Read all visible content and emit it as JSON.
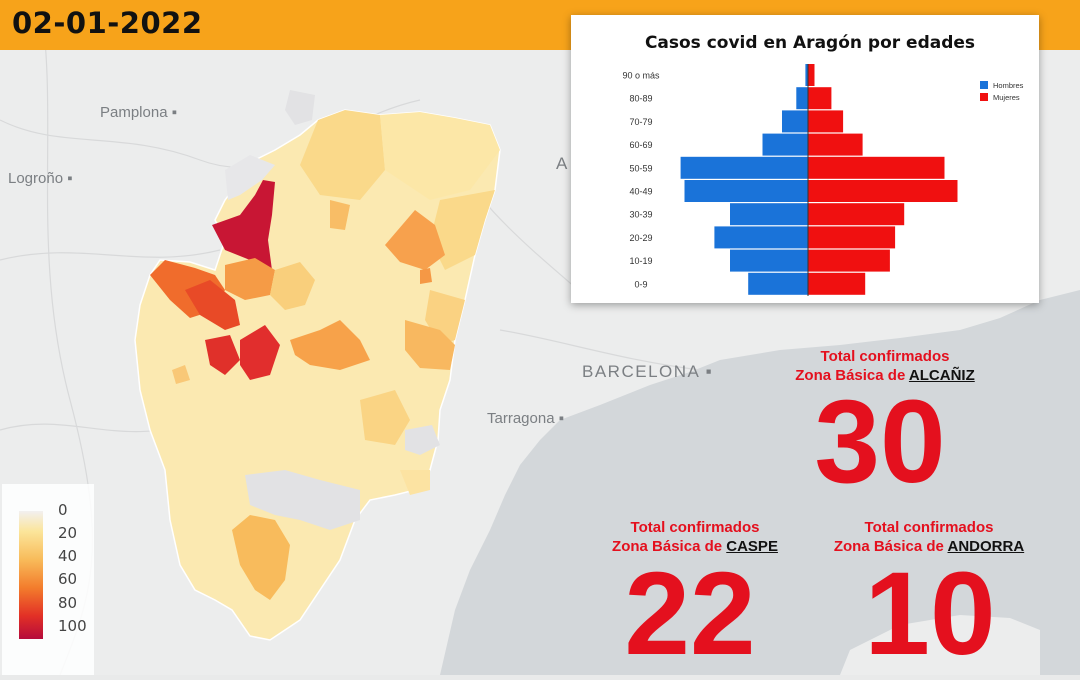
{
  "date": "02-01-2022",
  "map": {
    "cities": [
      "Pamplona",
      "Logroño",
      "BARCELONA",
      "Tarragona",
      "A"
    ]
  },
  "legend": {
    "ticks": [
      "0",
      "20",
      "40",
      "60",
      "80",
      "100"
    ],
    "colors": [
      "#f2f0f0",
      "#fbe59a",
      "#f8bb5a",
      "#f37c2c",
      "#e23026",
      "#b50b3b"
    ]
  },
  "chart_data": {
    "type": "bar",
    "title": "Casos covid en Aragón por edades",
    "categories": [
      "90 o más",
      "80-89",
      "70-79",
      "60-69",
      "50-59",
      "40-49",
      "30-39",
      "20-29",
      "10-19",
      "0-9"
    ],
    "series": [
      {
        "name": "Hombres",
        "color": "#1a73d9",
        "values": [
          2,
          9,
          20,
          35,
          98,
          95,
          60,
          72,
          60,
          46
        ]
      },
      {
        "name": "Mujeres",
        "color": "#f01010",
        "values": [
          5,
          18,
          27,
          42,
          105,
          115,
          74,
          67,
          63,
          44
        ]
      }
    ],
    "legend_position": "top-right",
    "orientation": "horizontal-pyramid"
  },
  "stats": [
    {
      "label": "Total confirmados",
      "prefix": "Zona Básica de",
      "place": "ALCAÑIZ",
      "value": "30"
    },
    {
      "label": "Total confirmados",
      "prefix": "Zona Básica de",
      "place": "CASPE",
      "value": "22"
    },
    {
      "label": "Total confirmados",
      "prefix": "Zona Básica de",
      "place": "ANDORRA",
      "value": "10"
    }
  ]
}
